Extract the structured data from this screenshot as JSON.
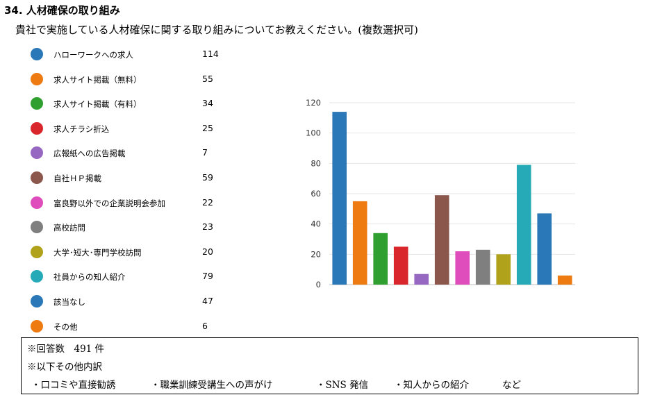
{
  "header": {
    "title": "34. 人材確保の取り組み",
    "subtitle": "貴社で実施している人材確保に関する取り組みについてお教えください。(複数選択可)"
  },
  "chart_data": {
    "type": "bar",
    "categories": [
      "ハローワークへの求人",
      "求人サイト掲載（無料）",
      "求人サイト掲載（有料）",
      "求人チラシ折込",
      "広報紙への広告掲載",
      "自社ＨＰ掲載",
      "富良野以外での企業説明会参加",
      "高校訪問",
      "大学･短大･専門学校訪問",
      "社員からの知人紹介",
      "該当なし",
      "その他"
    ],
    "values": [
      114,
      55,
      34,
      25,
      7,
      59,
      22,
      23,
      20,
      79,
      47,
      6
    ],
    "colors": [
      "#2a78b8",
      "#ee7a12",
      "#2fa02f",
      "#d8262c",
      "#9668c2",
      "#8b564b",
      "#de4dbb",
      "#7f7f7f",
      "#b0a21a",
      "#27aab8",
      "#2a78b8",
      "#ee7a12"
    ],
    "ylim": [
      0,
      120
    ],
    "yticks": [
      0,
      20,
      40,
      60,
      80,
      100,
      120
    ],
    "grid": true,
    "legend_position": "left"
  },
  "notes": {
    "total": "※回答数　491 件",
    "other_heading": "※以下その他内訳",
    "other_items": [
      "・口コミや直接勧誘",
      "・職業訓練受講生への声がけ",
      "・SNS 発信",
      "・知人からの紹介",
      "など"
    ]
  }
}
